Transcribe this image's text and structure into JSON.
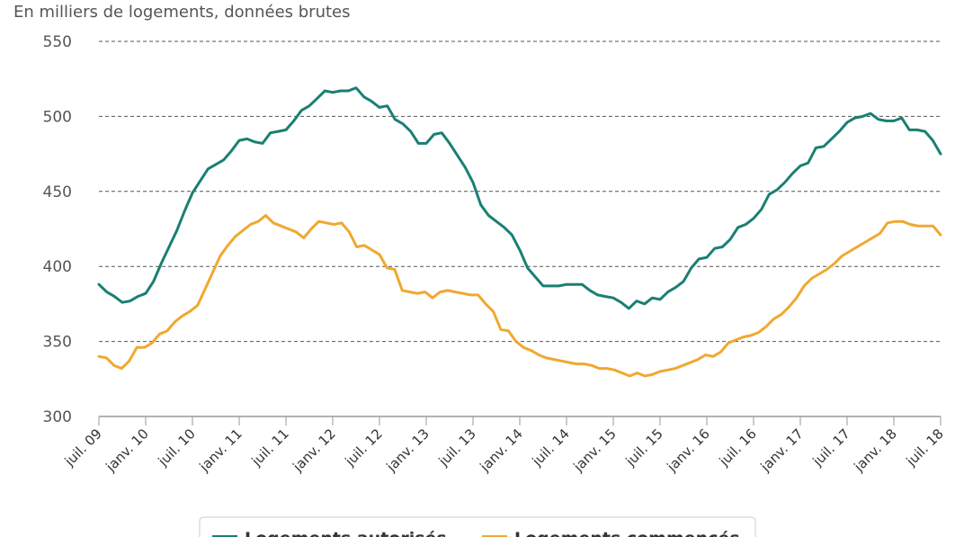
{
  "chart_data": {
    "type": "line",
    "unit_label": "En milliers de logements, données brutes",
    "ylim": [
      300,
      550
    ],
    "yticks": [
      300,
      350,
      400,
      450,
      500,
      550
    ],
    "grid": true,
    "xticks": [
      "juil. 09",
      "janv. 10",
      "juil. 10",
      "janv. 11",
      "juil. 11",
      "janv. 12",
      "juil. 12",
      "janv. 13",
      "juil. 13",
      "janv. 14",
      "juil. 14",
      "janv. 15",
      "juil. 15",
      "janv. 16",
      "juil. 16",
      "janv. 17",
      "juil. 17",
      "janv. 18",
      "juil. 18"
    ],
    "legend_placement": "bottom",
    "series": [
      {
        "name": "Logements autorisés",
        "color": "#1a7f73",
        "values": [
          388,
          383,
          380,
          376,
          377,
          380,
          382,
          390,
          402,
          413,
          424,
          437,
          449,
          457,
          465,
          468,
          471,
          477,
          484,
          485,
          483,
          482,
          489,
          490,
          491,
          497,
          504,
          507,
          512,
          517,
          516,
          517,
          517,
          519,
          513,
          510,
          506,
          507,
          498,
          495,
          490,
          482,
          482,
          488,
          489,
          482,
          474,
          466,
          456,
          441,
          434,
          430,
          426,
          421,
          411,
          399,
          393,
          387,
          387,
          387,
          388,
          388,
          388,
          384,
          381,
          380,
          379,
          376,
          372,
          377,
          375,
          379,
          378,
          383,
          386,
          390,
          399,
          405,
          406,
          412,
          413,
          418,
          426,
          428,
          432,
          438,
          448,
          451,
          456,
          462,
          467,
          469,
          479,
          480,
          485,
          490,
          496,
          499,
          500,
          502,
          498,
          497,
          497,
          499,
          491,
          491,
          490,
          484,
          475
        ]
      },
      {
        "name": "Logements commencés",
        "color": "#f0a830",
        "values": [
          340,
          339,
          334,
          332,
          337,
          346,
          346,
          349,
          355,
          357,
          363,
          367,
          370,
          374,
          385,
          396,
          407,
          414,
          420,
          424,
          428,
          430,
          434,
          429,
          427,
          425,
          423,
          419,
          425,
          430,
          429,
          428,
          429,
          423,
          413,
          414,
          411,
          408,
          399,
          398,
          384,
          383,
          382,
          383,
          379,
          383,
          384,
          383,
          382,
          381,
          381,
          375,
          370,
          358,
          357,
          350,
          346,
          344,
          341,
          339,
          338,
          337,
          336,
          335,
          335,
          334,
          332,
          332,
          331,
          329,
          327,
          329,
          327,
          328,
          330,
          331,
          332,
          334,
          336,
          338,
          341,
          340,
          343,
          349,
          351,
          353,
          354,
          356,
          360,
          365,
          368,
          373,
          379,
          387,
          392,
          395,
          398,
          402,
          407,
          410,
          413,
          416,
          419,
          422,
          429,
          430,
          430,
          428,
          427,
          427,
          427,
          421
        ]
      }
    ]
  }
}
